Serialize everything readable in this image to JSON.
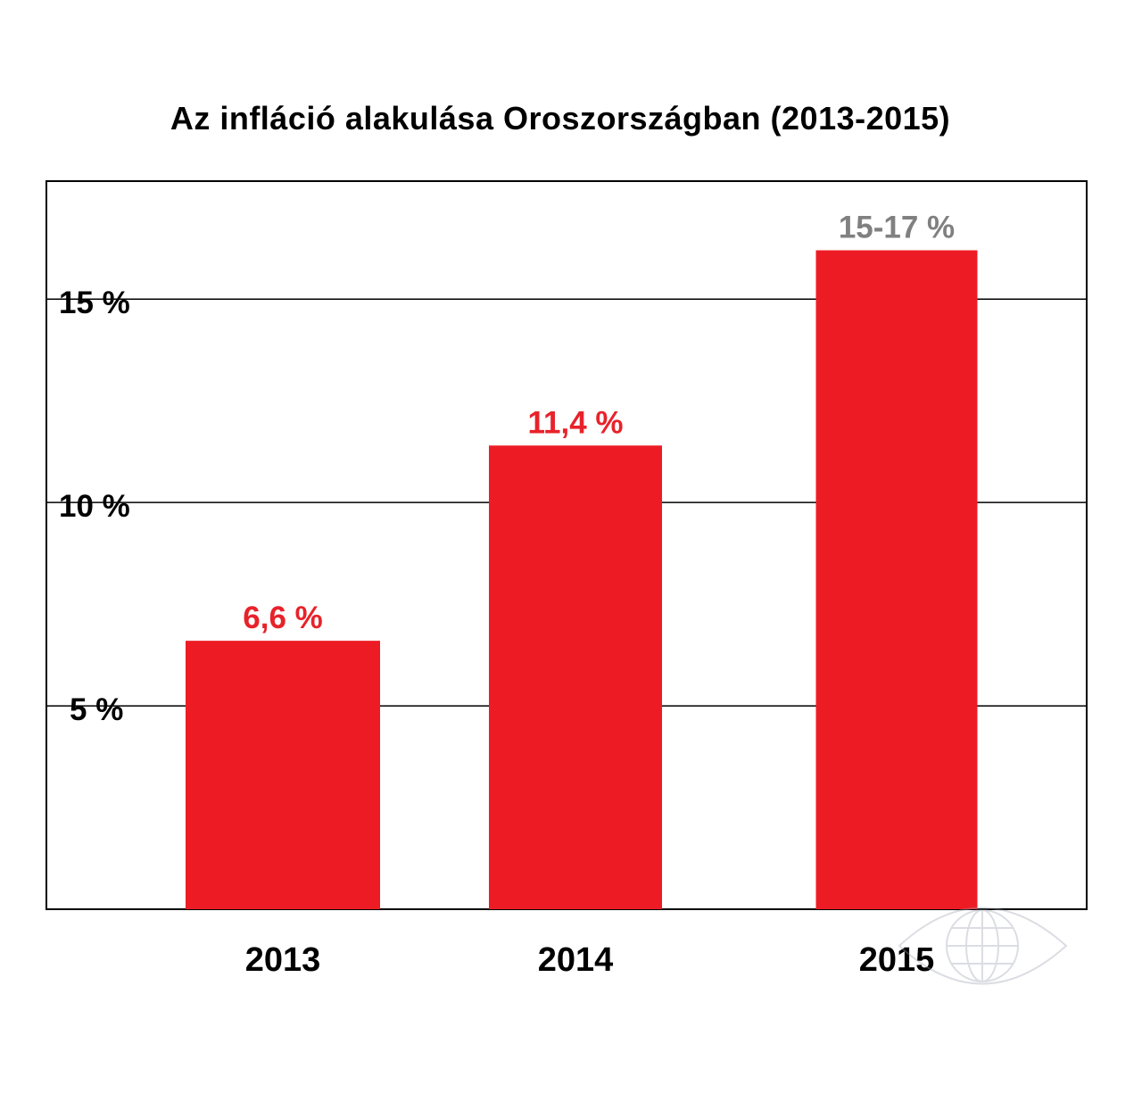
{
  "chart_data": {
    "type": "bar",
    "title": "Az infláció alakulása Oroszországban (2013-2015)",
    "categories": [
      "2013",
      "2014",
      "2015"
    ],
    "values": [
      6.6,
      11.4,
      16.2
    ],
    "data_labels": [
      "6,6 %",
      "11,4 %",
      "15-17 %"
    ],
    "data_label_colors": [
      "#e8222a",
      "#e8222a",
      "#808080"
    ],
    "y_ticks": [
      {
        "value": 5,
        "label": "5 %"
      },
      {
        "value": 10,
        "label": "10 %"
      },
      {
        "value": 15,
        "label": "15 %"
      }
    ],
    "ylim": [
      0,
      17.9
    ],
    "grid": true,
    "legend": "none",
    "bar_color": "#ed1c24"
  }
}
